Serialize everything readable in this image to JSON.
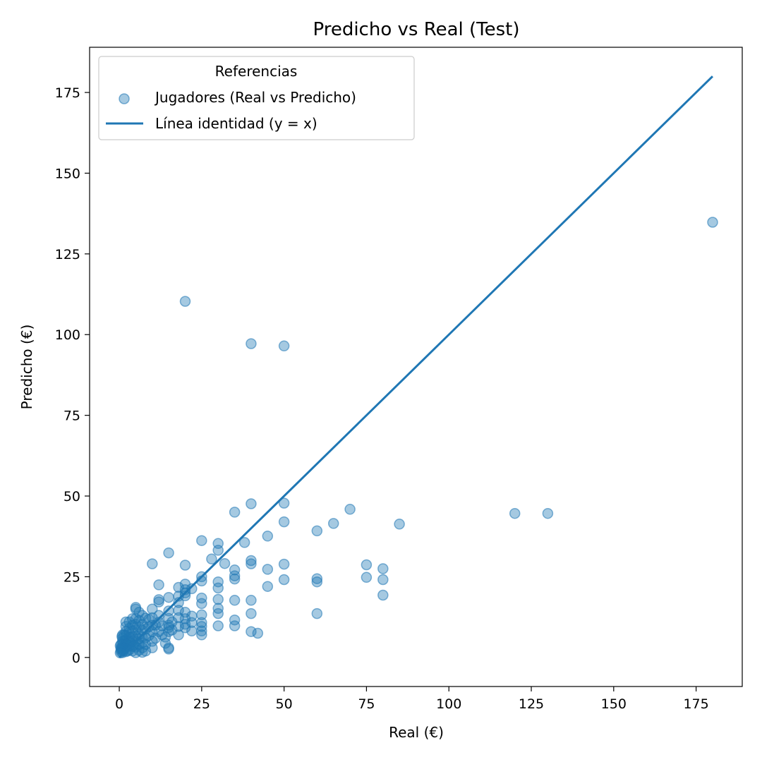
{
  "chart_data": {
    "type": "scatter",
    "title": "Predicho vs Real (Test)",
    "xlabel": "Real (€)",
    "ylabel": "Predicho (€)",
    "xlim": [
      -9,
      189
    ],
    "ylim": [
      -9,
      189
    ],
    "x_ticks": [
      0,
      25,
      50,
      75,
      100,
      125,
      150,
      175
    ],
    "y_ticks": [
      0,
      25,
      50,
      75,
      100,
      125,
      150,
      175
    ],
    "grid": false,
    "legend": {
      "title": "Referencias",
      "placement": "top-left",
      "entries": [
        {
          "label": "Jugadores (Real vs Predicho)",
          "marker": "circle"
        },
        {
          "label": "Línea identidad (y = x)",
          "marker": "line"
        }
      ]
    },
    "colors": {
      "series": "#1f77b4"
    },
    "series": [
      {
        "name": "Jugadores (Real vs Predicho)",
        "kind": "scatter",
        "points": [
          [
            180,
            134.8
          ],
          [
            20,
            110.3
          ],
          [
            40,
            97.2
          ],
          [
            50,
            96.5
          ],
          [
            120,
            44.6
          ],
          [
            130,
            44.6
          ],
          [
            85,
            41.3
          ],
          [
            70,
            45.9
          ],
          [
            65,
            41.5
          ],
          [
            60,
            39.2
          ],
          [
            50,
            47.8
          ],
          [
            50,
            42.0
          ],
          [
            40,
            47.6
          ],
          [
            35,
            45.0
          ],
          [
            38,
            35.6
          ],
          [
            45,
            37.6
          ],
          [
            25,
            36.2
          ],
          [
            30,
            35.3
          ],
          [
            15,
            32.4
          ],
          [
            30,
            33.2
          ],
          [
            28,
            30.5
          ],
          [
            32,
            29.1
          ],
          [
            40,
            30.0
          ],
          [
            40,
            29.0
          ],
          [
            50,
            28.9
          ],
          [
            45,
            27.3
          ],
          [
            35,
            27.1
          ],
          [
            35,
            25.3
          ],
          [
            35,
            24.3
          ],
          [
            75,
            28.7
          ],
          [
            80,
            27.5
          ],
          [
            75,
            24.8
          ],
          [
            80,
            24.1
          ],
          [
            60,
            24.4
          ],
          [
            60,
            23.4
          ],
          [
            50,
            24.1
          ],
          [
            80,
            19.3
          ],
          [
            60,
            13.6
          ],
          [
            45,
            22.0
          ],
          [
            40,
            17.7
          ],
          [
            35,
            17.7
          ],
          [
            40,
            13.6
          ],
          [
            40,
            8.0
          ],
          [
            42,
            7.5
          ],
          [
            35,
            9.8
          ],
          [
            35,
            11.6
          ],
          [
            30,
            9.8
          ],
          [
            30,
            13.6
          ],
          [
            30,
            15.2
          ],
          [
            30,
            18.0
          ],
          [
            30,
            21.5
          ],
          [
            30,
            23.4
          ],
          [
            25,
            25.0
          ],
          [
            25,
            23.7
          ],
          [
            25,
            18.4
          ],
          [
            25,
            16.7
          ],
          [
            25,
            13.2
          ],
          [
            25,
            10.8
          ],
          [
            25,
            9.6
          ],
          [
            25,
            8.2
          ],
          [
            25,
            7.0
          ],
          [
            10,
            29.0
          ],
          [
            20,
            28.6
          ],
          [
            20,
            22.7
          ],
          [
            20,
            21.0
          ],
          [
            20,
            20.0
          ],
          [
            20,
            19.1
          ],
          [
            18,
            21.7
          ],
          [
            18,
            19.0
          ],
          [
            20,
            14.0
          ],
          [
            20,
            12.0
          ],
          [
            20,
            10.3
          ],
          [
            20,
            9.2
          ],
          [
            22,
            21.3
          ],
          [
            22,
            12.8
          ],
          [
            22,
            10.8
          ],
          [
            22,
            8.2
          ],
          [
            18,
            17.0
          ],
          [
            18,
            14.6
          ],
          [
            18,
            12.3
          ],
          [
            18,
            9.6
          ],
          [
            18,
            7.0
          ],
          [
            15,
            18.6
          ],
          [
            15,
            14.4
          ],
          [
            15,
            12.1
          ],
          [
            15,
            10.0
          ],
          [
            15,
            9.3
          ],
          [
            15,
            8.0
          ],
          [
            15,
            3.0
          ],
          [
            15,
            2.6
          ],
          [
            14,
            6.3
          ],
          [
            14,
            4.4
          ],
          [
            12,
            22.5
          ],
          [
            12,
            17.9
          ],
          [
            12,
            17.2
          ],
          [
            12,
            13.0
          ],
          [
            12,
            10.9
          ],
          [
            12,
            8.0
          ],
          [
            10,
            15.0
          ],
          [
            10,
            12.3
          ],
          [
            10,
            10.0
          ],
          [
            10,
            8.0
          ],
          [
            10,
            5.0
          ],
          [
            10,
            3.0
          ],
          [
            9,
            11.8
          ],
          [
            8,
            12.2
          ],
          [
            8,
            8.8
          ],
          [
            8,
            6.1
          ],
          [
            8,
            4.0
          ],
          [
            8,
            2.0
          ],
          [
            7,
            13.0
          ],
          [
            7,
            10.2
          ],
          [
            7,
            8.4
          ],
          [
            7,
            6.3
          ],
          [
            7,
            4.5
          ],
          [
            7,
            3.0
          ],
          [
            7,
            1.6
          ],
          [
            6,
            14.0
          ],
          [
            6,
            11.5
          ],
          [
            6,
            9.5
          ],
          [
            6,
            7.2
          ],
          [
            6,
            5.8
          ],
          [
            6,
            4.0
          ],
          [
            6,
            2.2
          ],
          [
            5,
            15.5
          ],
          [
            5,
            15.0
          ],
          [
            5,
            12.0
          ],
          [
            5,
            10.3
          ],
          [
            5,
            8.5
          ],
          [
            5,
            6.6
          ],
          [
            5,
            5.0
          ],
          [
            5,
            3.2
          ],
          [
            5,
            1.5
          ],
          [
            4,
            12.0
          ],
          [
            4,
            10.0
          ],
          [
            4,
            8.2
          ],
          [
            4,
            6.5
          ],
          [
            4,
            5.0
          ],
          [
            4,
            3.4
          ],
          [
            4,
            2.0
          ],
          [
            3,
            11.0
          ],
          [
            3,
            9.0
          ],
          [
            3,
            7.8
          ],
          [
            3,
            6.2
          ],
          [
            3,
            5.0
          ],
          [
            3,
            3.6
          ],
          [
            3,
            2.3
          ],
          [
            2,
            11.0
          ],
          [
            2,
            9.6
          ],
          [
            2,
            8.0
          ],
          [
            2,
            6.8
          ],
          [
            2,
            5.5
          ],
          [
            2,
            4.3
          ],
          [
            2,
            3.0
          ],
          [
            2,
            1.8
          ],
          [
            1.5,
            7.0
          ],
          [
            1.5,
            5.0
          ],
          [
            1.5,
            3.0
          ],
          [
            1.2,
            2.0
          ],
          [
            1,
            7.0
          ],
          [
            1,
            6.0
          ],
          [
            1,
            5.0
          ],
          [
            1,
            4.0
          ],
          [
            1,
            3.0
          ],
          [
            1,
            2.2
          ],
          [
            1,
            1.5
          ],
          [
            0.5,
            4.0
          ],
          [
            0.5,
            3.0
          ],
          [
            0.5,
            2.4
          ],
          [
            0.5,
            1.8
          ],
          [
            0.3,
            3.6
          ],
          [
            0.3,
            1.4
          ],
          [
            0.8,
            6.5
          ],
          [
            0.8,
            2.8
          ],
          [
            2.5,
            4.0
          ],
          [
            3.5,
            4.5
          ],
          [
            4.5,
            3.8
          ],
          [
            2.5,
            2.0
          ],
          [
            9,
            6.8
          ],
          [
            9,
            9.5
          ],
          [
            11,
            10.0
          ],
          [
            11,
            6.0
          ],
          [
            13,
            7.0
          ],
          [
            13,
            9.8
          ],
          [
            16,
            11.0
          ],
          [
            16,
            8.5
          ]
        ]
      },
      {
        "name": "Línea identidad (y = x)",
        "kind": "line",
        "points": [
          [
            0,
            0
          ],
          [
            180,
            180
          ]
        ]
      }
    ]
  }
}
